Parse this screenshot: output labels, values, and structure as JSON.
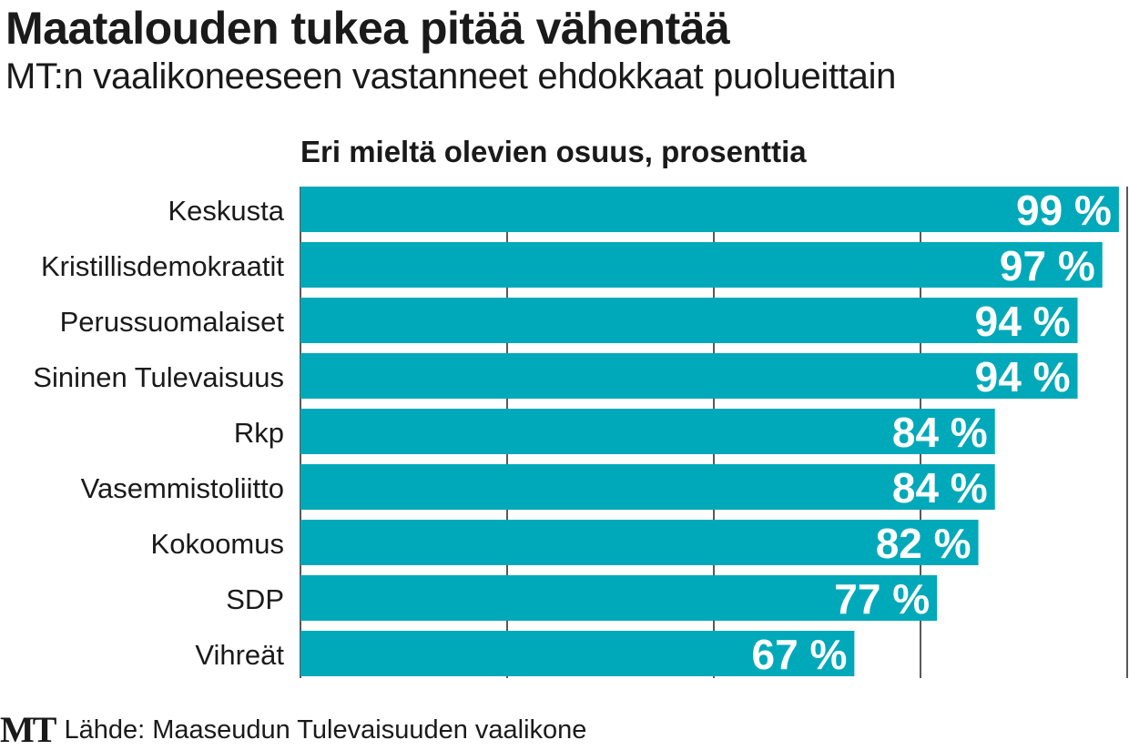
{
  "title": "Maatalouden tukea pitää vähentää",
  "subtitle": "MT:n vaalikoneeseen vastanneet ehdokkaat puolueittain",
  "footer": {
    "logo": "MT",
    "source": "Lähde: Maaseudun Tulevaisuuden vaalikone"
  },
  "colors": {
    "bar": "#00a9b9",
    "grid": "#222222",
    "label": "#ffffff"
  },
  "chart_data": {
    "type": "bar",
    "orientation": "horizontal",
    "title": "Eri mieltä olevien osuus, prosenttia",
    "xlim": [
      0,
      100
    ],
    "gridlines": [
      0,
      25,
      50,
      75,
      100
    ],
    "unit": "%",
    "categories": [
      "Keskusta",
      "Kristillisdemokraatit",
      "Perussuomalaiset",
      "Sininen Tulevaisuus",
      "Rkp",
      "Vasemmistoliitto",
      "Kokoomus",
      "SDP",
      "Vihreät"
    ],
    "values": [
      99,
      97,
      94,
      94,
      84,
      84,
      82,
      77,
      67
    ],
    "value_labels": [
      "99 %",
      "97 %",
      "94 %",
      "94 %",
      "84 %",
      "84 %",
      "82 %",
      "77 %",
      "67 %"
    ]
  }
}
